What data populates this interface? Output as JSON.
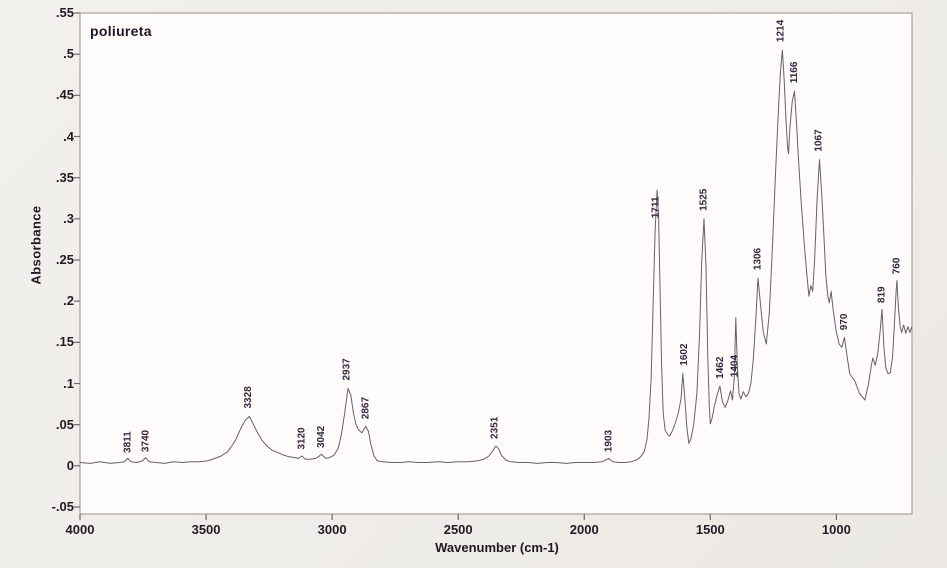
{
  "title": "poliureta",
  "y_axis_label": "Absorbance",
  "x_axis_label": "Wavenumber (cm-1)",
  "colors": {
    "curve": "#6b5e6e",
    "frame": "#989287",
    "tick": "#6e6a66",
    "plot_background": "#fdfcfa",
    "page_background": "#efede9",
    "text": "#241a26",
    "peak_label_text": "#39253f"
  },
  "chart_data": {
    "type": "line",
    "title": "poliureta",
    "xlabel": "Wavenumber (cm-1)",
    "ylabel": "Absorbance",
    "xlim": [
      4000,
      700
    ],
    "ylim": [
      -0.05,
      0.55
    ],
    "x_axis_reversed": true,
    "grid": false,
    "legend": "none",
    "x_ticks": [
      {
        "v": 4000,
        "label": "4000"
      },
      {
        "v": 3500,
        "label": "3500"
      },
      {
        "v": 3000,
        "label": "3000"
      },
      {
        "v": 2500,
        "label": "2500"
      },
      {
        "v": 2000,
        "label": "2000"
      },
      {
        "v": 1500,
        "label": "1500"
      },
      {
        "v": 1000,
        "label": "1000"
      }
    ],
    "y_ticks": [
      {
        "v": -0.05,
        "label": "-.05"
      },
      {
        "v": 0,
        "label": "0"
      },
      {
        "v": 0.05,
        "label": ".05"
      },
      {
        "v": 0.1,
        "label": ".1"
      },
      {
        "v": 0.15,
        "label": ".15"
      },
      {
        "v": 0.2,
        "label": ".2"
      },
      {
        "v": 0.25,
        "label": ".25"
      },
      {
        "v": 0.3,
        "label": ".3"
      },
      {
        "v": 0.35,
        "label": ".35"
      },
      {
        "v": 0.4,
        "label": ".4"
      },
      {
        "v": 0.45,
        "label": ".45"
      },
      {
        "v": 0.5,
        "label": ".5"
      },
      {
        "v": 0.55,
        "label": ".55"
      }
    ],
    "peak_labels": [
      {
        "text": "3811",
        "wn": 3815,
        "abs": 0.012
      },
      {
        "text": "3740",
        "wn": 3745,
        "abs": 0.013
      },
      {
        "text": "3328",
        "wn": 3338,
        "abs": 0.066
      },
      {
        "text": "3120",
        "wn": 3126,
        "abs": 0.016
      },
      {
        "text": "3042",
        "wn": 3048,
        "abs": 0.018
      },
      {
        "text": "2937",
        "wn": 2946,
        "abs": 0.1
      },
      {
        "text": "2867",
        "wn": 2872,
        "abs": 0.053
      },
      {
        "text": "2351",
        "wn": 2360,
        "abs": 0.029
      },
      {
        "text": "1903",
        "wn": 1908,
        "abs": 0.013
      },
      {
        "text": "1711",
        "wn": 1722,
        "abs": 0.297
      },
      {
        "text": "1602",
        "wn": 1608,
        "abs": 0.118
      },
      {
        "text": "1525",
        "wn": 1531,
        "abs": 0.306
      },
      {
        "text": "1462",
        "wn": 1466,
        "abs": 0.102
      },
      {
        "text": "1404",
        "wn": 1408,
        "abs": 0.104
      },
      {
        "text": "1306",
        "wn": 1316,
        "abs": 0.234
      },
      {
        "text": "1214",
        "wn": 1225,
        "abs": 0.511
      },
      {
        "text": "1166",
        "wn": 1171,
        "abs": 0.461
      },
      {
        "text": "1067",
        "wn": 1075,
        "abs": 0.378
      },
      {
        "text": "970",
        "wn": 974,
        "abs": 0.161
      },
      {
        "text": "819",
        "wn": 824,
        "abs": 0.194
      },
      {
        "text": "760",
        "wn": 766,
        "abs": 0.229
      }
    ],
    "series": [
      {
        "name": "poliureta",
        "points": [
          [
            4000,
            0.004
          ],
          [
            3960,
            0.003
          ],
          [
            3920,
            0.005
          ],
          [
            3880,
            0.003
          ],
          [
            3845,
            0.004
          ],
          [
            3825,
            0.005
          ],
          [
            3811,
            0.009
          ],
          [
            3798,
            0.005
          ],
          [
            3775,
            0.004
          ],
          [
            3752,
            0.006
          ],
          [
            3740,
            0.01
          ],
          [
            3726,
            0.005
          ],
          [
            3700,
            0.004
          ],
          [
            3665,
            0.003
          ],
          [
            3630,
            0.005
          ],
          [
            3595,
            0.004
          ],
          [
            3560,
            0.005
          ],
          [
            3525,
            0.005
          ],
          [
            3495,
            0.006
          ],
          [
            3465,
            0.009
          ],
          [
            3440,
            0.012
          ],
          [
            3415,
            0.017
          ],
          [
            3398,
            0.024
          ],
          [
            3380,
            0.033
          ],
          [
            3362,
            0.046
          ],
          [
            3345,
            0.055
          ],
          [
            3328,
            0.06
          ],
          [
            3312,
            0.05
          ],
          [
            3295,
            0.04
          ],
          [
            3278,
            0.031
          ],
          [
            3258,
            0.024
          ],
          [
            3238,
            0.019
          ],
          [
            3215,
            0.016
          ],
          [
            3192,
            0.013
          ],
          [
            3170,
            0.011
          ],
          [
            3148,
            0.01
          ],
          [
            3133,
            0.009
          ],
          [
            3120,
            0.012
          ],
          [
            3106,
            0.008
          ],
          [
            3088,
            0.008
          ],
          [
            3064,
            0.009
          ],
          [
            3042,
            0.014
          ],
          [
            3026,
            0.009
          ],
          [
            3010,
            0.01
          ],
          [
            2992,
            0.013
          ],
          [
            2976,
            0.021
          ],
          [
            2963,
            0.038
          ],
          [
            2950,
            0.064
          ],
          [
            2937,
            0.094
          ],
          [
            2926,
            0.086
          ],
          [
            2916,
            0.065
          ],
          [
            2906,
            0.051
          ],
          [
            2896,
            0.044
          ],
          [
            2882,
            0.04
          ],
          [
            2867,
            0.048
          ],
          [
            2856,
            0.042
          ],
          [
            2846,
            0.026
          ],
          [
            2834,
            0.012
          ],
          [
            2820,
            0.006
          ],
          [
            2800,
            0.005
          ],
          [
            2765,
            0.004
          ],
          [
            2730,
            0.004
          ],
          [
            2695,
            0.005
          ],
          [
            2660,
            0.004
          ],
          [
            2620,
            0.004
          ],
          [
            2580,
            0.005
          ],
          [
            2540,
            0.004
          ],
          [
            2500,
            0.005
          ],
          [
            2462,
            0.005
          ],
          [
            2425,
            0.006
          ],
          [
            2398,
            0.008
          ],
          [
            2378,
            0.012
          ],
          [
            2363,
            0.018
          ],
          [
            2351,
            0.024
          ],
          [
            2340,
            0.021
          ],
          [
            2327,
            0.012
          ],
          [
            2310,
            0.007
          ],
          [
            2292,
            0.005
          ],
          [
            2258,
            0.004
          ],
          [
            2222,
            0.004
          ],
          [
            2185,
            0.003
          ],
          [
            2148,
            0.004
          ],
          [
            2110,
            0.004
          ],
          [
            2072,
            0.003
          ],
          [
            2035,
            0.004
          ],
          [
            1998,
            0.004
          ],
          [
            1962,
            0.004
          ],
          [
            1928,
            0.005
          ],
          [
            1903,
            0.009
          ],
          [
            1887,
            0.005
          ],
          [
            1862,
            0.004
          ],
          [
            1838,
            0.004
          ],
          [
            1814,
            0.005
          ],
          [
            1794,
            0.007
          ],
          [
            1776,
            0.011
          ],
          [
            1762,
            0.017
          ],
          [
            1751,
            0.032
          ],
          [
            1743,
            0.058
          ],
          [
            1735,
            0.105
          ],
          [
            1727,
            0.195
          ],
          [
            1719,
            0.285
          ],
          [
            1711,
            0.335
          ],
          [
            1705,
            0.302
          ],
          [
            1699,
            0.212
          ],
          [
            1693,
            0.122
          ],
          [
            1687,
            0.064
          ],
          [
            1679,
            0.043
          ],
          [
            1669,
            0.038
          ],
          [
            1661,
            0.036
          ],
          [
            1651,
            0.042
          ],
          [
            1639,
            0.052
          ],
          [
            1627,
            0.064
          ],
          [
            1616,
            0.082
          ],
          [
            1609,
            0.112
          ],
          [
            1601,
            0.082
          ],
          [
            1593,
            0.046
          ],
          [
            1585,
            0.027
          ],
          [
            1577,
            0.033
          ],
          [
            1566,
            0.05
          ],
          [
            1553,
            0.088
          ],
          [
            1543,
            0.158
          ],
          [
            1534,
            0.248
          ],
          [
            1525,
            0.3
          ],
          [
            1517,
            0.242
          ],
          [
            1510,
            0.132
          ],
          [
            1504,
            0.072
          ],
          [
            1500,
            0.051
          ],
          [
            1493,
            0.058
          ],
          [
            1484,
            0.072
          ],
          [
            1473,
            0.086
          ],
          [
            1462,
            0.097
          ],
          [
            1452,
            0.078
          ],
          [
            1441,
            0.071
          ],
          [
            1430,
            0.08
          ],
          [
            1420,
            0.091
          ],
          [
            1412,
            0.08
          ],
          [
            1405,
            0.108
          ],
          [
            1399,
            0.18
          ],
          [
            1393,
            0.122
          ],
          [
            1386,
            0.088
          ],
          [
            1379,
            0.081
          ],
          [
            1369,
            0.09
          ],
          [
            1359,
            0.084
          ],
          [
            1349,
            0.088
          ],
          [
            1339,
            0.1
          ],
          [
            1329,
            0.131
          ],
          [
            1319,
            0.18
          ],
          [
            1311,
            0.228
          ],
          [
            1301,
            0.196
          ],
          [
            1290,
            0.163
          ],
          [
            1278,
            0.148
          ],
          [
            1266,
            0.186
          ],
          [
            1254,
            0.262
          ],
          [
            1242,
            0.352
          ],
          [
            1230,
            0.432
          ],
          [
            1222,
            0.478
          ],
          [
            1214,
            0.505
          ],
          [
            1207,
            0.468
          ],
          [
            1200,
            0.422
          ],
          [
            1194,
            0.388
          ],
          [
            1190,
            0.379
          ],
          [
            1184,
            0.412
          ],
          [
            1175,
            0.442
          ],
          [
            1166,
            0.455
          ],
          [
            1158,
            0.416
          ],
          [
            1150,
            0.372
          ],
          [
            1140,
            0.322
          ],
          [
            1128,
            0.272
          ],
          [
            1118,
            0.236
          ],
          [
            1109,
            0.206
          ],
          [
            1101,
            0.219
          ],
          [
            1094,
            0.212
          ],
          [
            1086,
            0.252
          ],
          [
            1077,
            0.322
          ],
          [
            1067,
            0.372
          ],
          [
            1058,
            0.33
          ],
          [
            1050,
            0.282
          ],
          [
            1042,
            0.232
          ],
          [
            1034,
            0.206
          ],
          [
            1028,
            0.198
          ],
          [
            1021,
            0.212
          ],
          [
            1013,
            0.19
          ],
          [
            1001,
            0.164
          ],
          [
            989,
            0.148
          ],
          [
            978,
            0.144
          ],
          [
            968,
            0.156
          ],
          [
            958,
            0.134
          ],
          [
            947,
            0.112
          ],
          [
            927,
            0.103
          ],
          [
            908,
            0.088
          ],
          [
            887,
            0.08
          ],
          [
            872,
            0.1
          ],
          [
            862,
            0.121
          ],
          [
            855,
            0.131
          ],
          [
            846,
            0.122
          ],
          [
            836,
            0.136
          ],
          [
            827,
            0.162
          ],
          [
            819,
            0.19
          ],
          [
            812,
            0.146
          ],
          [
            804,
            0.119
          ],
          [
            795,
            0.112
          ],
          [
            786,
            0.113
          ],
          [
            777,
            0.133
          ],
          [
            769,
            0.176
          ],
          [
            763,
            0.212
          ],
          [
            760,
            0.225
          ],
          [
            754,
            0.192
          ],
          [
            747,
            0.169
          ],
          [
            741,
            0.162
          ],
          [
            733,
            0.171
          ],
          [
            725,
            0.161
          ],
          [
            716,
            0.169
          ],
          [
            708,
            0.162
          ],
          [
            702,
            0.168
          ]
        ]
      }
    ]
  }
}
